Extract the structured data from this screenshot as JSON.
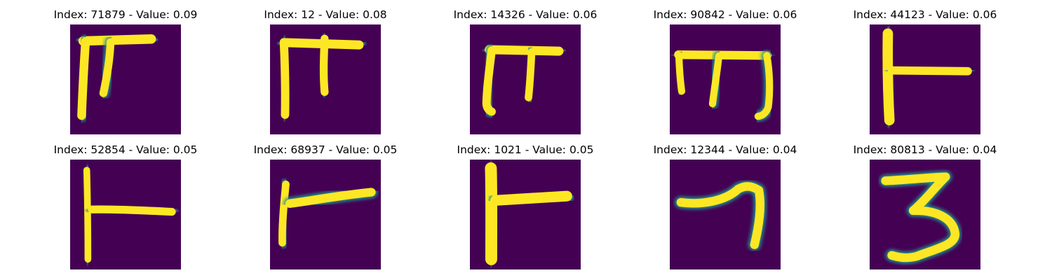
{
  "colors": {
    "background": "#440154",
    "stroke_core": "#fde725",
    "stroke_edge": "#21918c"
  },
  "panels": [
    {
      "index_label": "Index: 71879 - Value: 0.09",
      "glyph": "pi-like character"
    },
    {
      "index_label": "Index: 12 - Value: 0.08",
      "glyph": "pi-like character"
    },
    {
      "index_label": "Index: 14326 - Value: 0.06",
      "glyph": "pi-like character"
    },
    {
      "index_label": "Index: 90842 - Value: 0.06",
      "glyph": "m-like character"
    },
    {
      "index_label": "Index: 44123 - Value: 0.06",
      "glyph": "T-rotated character"
    },
    {
      "index_label": "Index: 52854 - Value: 0.05",
      "glyph": "T-rotated character"
    },
    {
      "index_label": "Index: 68937 - Value: 0.05",
      "glyph": "T-rotated character"
    },
    {
      "index_label": "Index: 1021 - Value: 0.05",
      "glyph": "T-rotated character"
    },
    {
      "index_label": "Index: 12344 - Value: 0.04",
      "glyph": "seven-like character"
    },
    {
      "index_label": "Index: 80813 - Value: 0.04",
      "glyph": "three-like character"
    }
  ]
}
